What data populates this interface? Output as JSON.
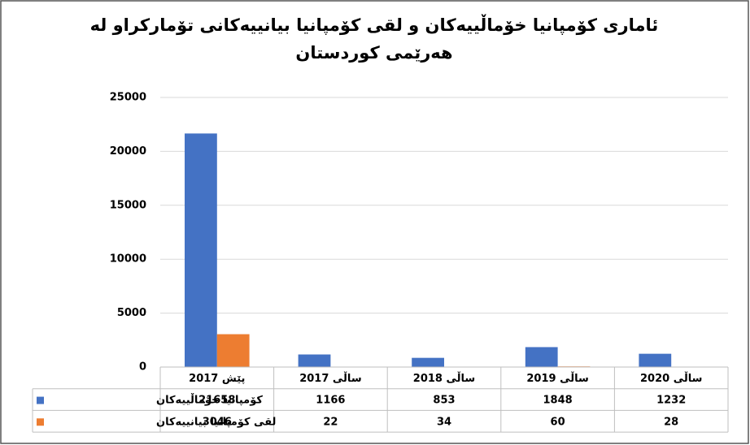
{
  "chart_data": {
    "type": "bar",
    "title": "ئاماری کۆمپانیا خۆماڵییەکان و لقی کۆمپانیا بیانییەکانی تۆمارکراو لە هەرێمی کوردستان",
    "categories": [
      "پێش 2017",
      "ساڵی 2017",
      "ساڵی 2018",
      "ساڵی 2019",
      "ساڵی 2020"
    ],
    "series": [
      {
        "name": "کۆمپانیا خۆماڵییەکان",
        "color": "#4472c4",
        "values": [
          21658,
          1166,
          853,
          1848,
          1232
        ]
      },
      {
        "name": "لقی کۆمپانیا بیانییەکان",
        "color": "#ed7d31",
        "values": [
          3046,
          22,
          34,
          60,
          28
        ]
      }
    ],
    "ylim": [
      0,
      25000
    ],
    "yticks": [
      0,
      5000,
      10000,
      15000,
      20000,
      25000
    ],
    "grid": true
  }
}
